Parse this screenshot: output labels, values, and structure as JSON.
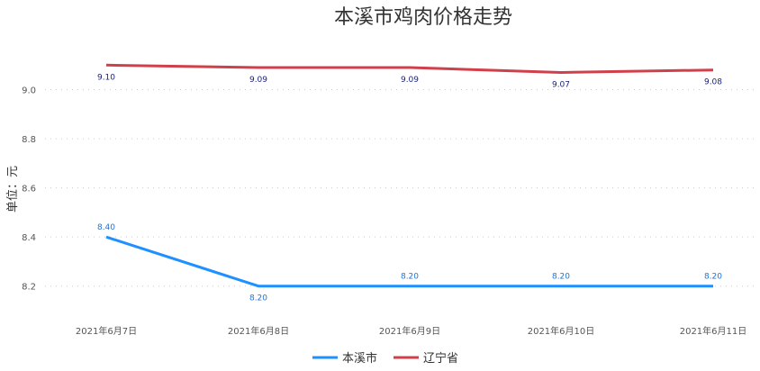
{
  "chart_data": {
    "type": "line",
    "title": "本溪市鸡肉价格走势",
    "ylabel": "单位：元",
    "xlabel": "",
    "categories": [
      "2021年6月7日",
      "2021年6月8日",
      "2021年6月9日",
      "2021年6月10日",
      "2021年6月11日"
    ],
    "ylim": [
      8.1,
      9.2
    ],
    "yticks": [
      "8.2",
      "8.4",
      "8.6",
      "8.8",
      "9.0"
    ],
    "grid": true,
    "legend_position": "bottom",
    "series": [
      {
        "name": "本溪市",
        "color": "#1e90ff",
        "label_color": "#1e73d6",
        "values": [
          8.4,
          8.2,
          8.2,
          8.2,
          8.2
        ],
        "labels": [
          "8.40",
          "8.20",
          "8.20",
          "8.20",
          "8.20"
        ]
      },
      {
        "name": "辽宁省",
        "color": "#d0404a",
        "label_color": "#1a237e",
        "values": [
          9.1,
          9.09,
          9.09,
          9.07,
          9.08
        ],
        "labels": [
          "9.10",
          "9.09",
          "9.09",
          "9.07",
          "9.08"
        ]
      }
    ]
  }
}
